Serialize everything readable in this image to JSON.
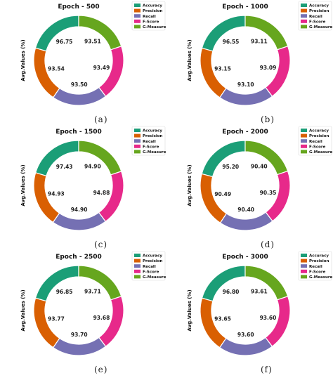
{
  "colors": {
    "Accuracy": "#1b9e77",
    "Precision": "#d95f02",
    "Recall": "#7570b3",
    "F-Score": "#e7298a",
    "G-Measure": "#66a61e"
  },
  "chart_data": [
    {
      "type": "pie",
      "variant": "donut",
      "title": "Epoch - 500",
      "ylabel": "Avg.Values (%)",
      "caption": "(a)",
      "legend": [
        "Accuracy",
        "Precision",
        "Recall",
        "F-Score",
        "G-Measure"
      ],
      "legend_position": "top-right",
      "categories": [
        "Accuracy",
        "Precision",
        "Recall",
        "F-Score",
        "G-Measure"
      ],
      "values": [
        96.75,
        93.54,
        93.5,
        93.49,
        93.51
      ],
      "labels": [
        "96.75",
        "93.54",
        "93.50",
        "93.49",
        "93.51"
      ]
    },
    {
      "type": "pie",
      "variant": "donut",
      "title": "Epoch - 1000",
      "ylabel": "Avg.Values (%)",
      "caption": "(b)",
      "legend": [
        "Accuracy",
        "Precision",
        "Recall",
        "F-Score",
        "G-Measure"
      ],
      "legend_position": "top-right",
      "categories": [
        "Accuracy",
        "Precision",
        "Recall",
        "F-Score",
        "G-Measure"
      ],
      "values": [
        96.55,
        93.15,
        93.1,
        93.09,
        93.11
      ],
      "labels": [
        "96.55",
        "93.15",
        "93.10",
        "93.09",
        "93.11"
      ]
    },
    {
      "type": "pie",
      "variant": "donut",
      "title": "Epoch - 1500",
      "ylabel": "Avg.Values (%)",
      "caption": "(c)",
      "legend": [
        "Accuracy",
        "Precision",
        "Recall",
        "F-Score",
        "G-Measure"
      ],
      "legend_position": "top-right",
      "categories": [
        "Accuracy",
        "Precision",
        "Recall",
        "F-Score",
        "G-Measure"
      ],
      "values": [
        97.43,
        94.93,
        94.9,
        94.88,
        94.9
      ],
      "labels": [
        "97.43",
        "94.93",
        "94.90",
        "94.88",
        "94.90"
      ]
    },
    {
      "type": "pie",
      "variant": "donut",
      "title": "Epoch - 2000",
      "ylabel": "Avg.Values (%)",
      "caption": "(d)",
      "legend": [
        "Accuracy",
        "Precision",
        "Recall",
        "F-Score",
        "G-Measure"
      ],
      "legend_position": "top-right",
      "categories": [
        "Accuracy",
        "Precision",
        "Recall",
        "F-Score",
        "G-Measure"
      ],
      "values": [
        95.2,
        90.49,
        90.4,
        90.35,
        90.4
      ],
      "labels": [
        "95.20",
        "90.49",
        "90.40",
        "90.35",
        "90.40"
      ]
    },
    {
      "type": "pie",
      "variant": "donut",
      "title": "Epoch - 2500",
      "ylabel": "Avg.Values (%)",
      "caption": "(e)",
      "legend": [
        "Accuracy",
        "Precision",
        "Recall",
        "F-Score",
        "G-Measure"
      ],
      "legend_position": "top-right",
      "categories": [
        "Accuracy",
        "Precision",
        "Recall",
        "F-Score",
        "G-Measure"
      ],
      "values": [
        96.85,
        93.77,
        93.7,
        93.68,
        93.71
      ],
      "labels": [
        "96.85",
        "93.77",
        "93.70",
        "93.68",
        "93.71"
      ]
    },
    {
      "type": "pie",
      "variant": "donut",
      "title": "Epoch - 3000",
      "ylabel": "Avg.Values (%)",
      "caption": "(f)",
      "legend": [
        "Accuracy",
        "Precision",
        "Recall",
        "F-Score",
        "G-Measure"
      ],
      "legend_position": "top-right",
      "categories": [
        "Accuracy",
        "Precision",
        "Recall",
        "F-Score",
        "G-Measure"
      ],
      "values": [
        96.8,
        93.65,
        93.6,
        93.6,
        93.61
      ],
      "labels": [
        "96.80",
        "93.65",
        "93.60",
        "93.60",
        "93.61"
      ]
    }
  ]
}
